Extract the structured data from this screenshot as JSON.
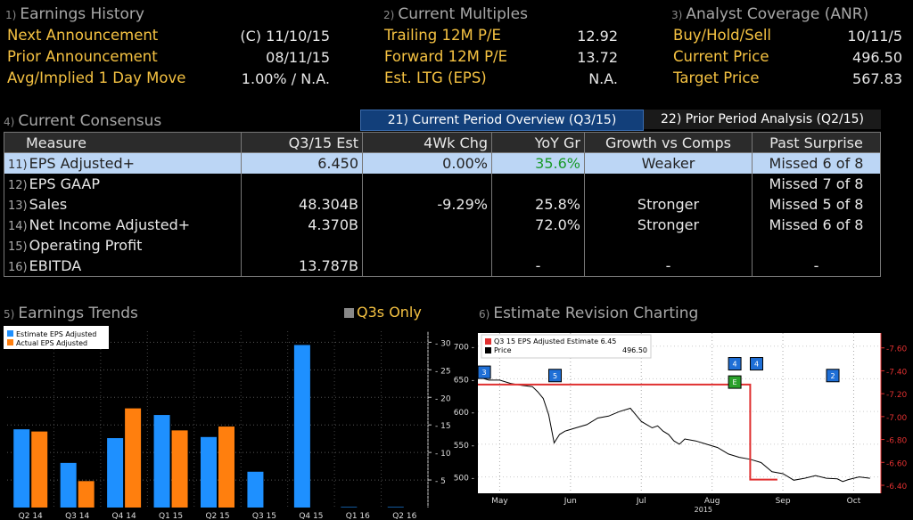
{
  "earnings_history": {
    "num": "1)",
    "title": "Earnings History",
    "rows": [
      {
        "label": "Next Announcement",
        "value": "(C)  11/10/15"
      },
      {
        "label": "Prior Announcement",
        "value": "08/11/15"
      },
      {
        "label": "Avg/Implied 1 Day Move",
        "value": "1.00% / N.A."
      }
    ]
  },
  "current_multiples": {
    "num": "2)",
    "title": "Current Multiples",
    "rows": [
      {
        "label": "Trailing 12M P/E",
        "value": "12.92"
      },
      {
        "label": "Forward 12M P/E",
        "value": "13.72"
      },
      {
        "label": "Est. LTG (EPS)",
        "value": "N.A."
      }
    ]
  },
  "analyst_coverage": {
    "num": "3)",
    "title": "Analyst Coverage (ANR)",
    "rows": [
      {
        "label": "Buy/Hold/Sell",
        "value": "10/11/5"
      },
      {
        "label": "Current Price",
        "value": "496.50"
      },
      {
        "label": "Target Price",
        "value": "567.83"
      }
    ]
  },
  "consensus": {
    "num": "4)",
    "title": "Current Consensus",
    "tab_current": "21) Current Period Overview (Q3/15)",
    "tab_prior": "22) Prior Period Analysis (Q2/15)",
    "headers": [
      "Measure",
      "Q3/15 Est",
      "4Wk Chg",
      "YoY Gr",
      "Growth vs Comps",
      "Past Surprise"
    ],
    "rows": [
      {
        "num": "11)",
        "measure": "EPS Adjusted+",
        "est": "6.450",
        "chg": "0.00%",
        "yoy": "35.6%",
        "comps": "Weaker",
        "surprise": "Missed 6 of 8"
      },
      {
        "num": "12)",
        "measure": "EPS GAAP",
        "est": "",
        "chg": "",
        "yoy": "",
        "comps": "",
        "surprise": "Missed 7 of 8"
      },
      {
        "num": "13)",
        "measure": "Sales",
        "est": "48.304B",
        "chg": "-9.29%",
        "yoy": "25.8%",
        "comps": "Stronger",
        "surprise": "Missed 5 of 8"
      },
      {
        "num": "14)",
        "measure": "Net Income Adjusted+",
        "est": "4.370B",
        "chg": "",
        "yoy": "72.0%",
        "comps": "Stronger",
        "surprise": "Missed 6 of 8"
      },
      {
        "num": "15)",
        "measure": "Operating Profit",
        "est": "",
        "chg": "",
        "yoy": "",
        "comps": "",
        "surprise": ""
      },
      {
        "num": "16)",
        "measure": "EBITDA",
        "est": "13.787B",
        "chg": "",
        "yoy": "-",
        "comps": "-",
        "surprise": "-"
      }
    ]
  },
  "earnings_trends": {
    "num": "5)",
    "title": "Earnings Trends",
    "q3s_label": "Q3s Only"
  },
  "revision_chart": {
    "num": "6)",
    "title": "Estimate Revision Charting"
  },
  "colors": {
    "amber": "#f5c242",
    "estimate_bar": "#1e90ff",
    "actual_bar": "#ff7f0e",
    "estimate_line": "#e03030",
    "price_line": "#000000",
    "selected_row": "#bcd6f5"
  },
  "chart_data": [
    {
      "type": "bar",
      "categories": [
        "Q2 14",
        "Q3 14",
        "Q4 14",
        "Q1 15",
        "Q2 15",
        "Q3 15",
        "Q4 15",
        "Q1 16",
        "Q2 16"
      ],
      "series": [
        {
          "name": "Estimate EPS Adjusted",
          "values": [
            14.2,
            8.1,
            12.6,
            16.8,
            12.8,
            6.5,
            29.5,
            0.1,
            0.1
          ]
        },
        {
          "name": "Actual EPS Adjusted",
          "values": [
            13.8,
            4.8,
            18.0,
            14.0,
            14.7,
            null,
            null,
            null,
            null
          ]
        }
      ],
      "ylim": [
        0,
        32
      ],
      "yticks": [
        5,
        10,
        15,
        20,
        25,
        30
      ],
      "grid": true,
      "legend": "top-left"
    },
    {
      "type": "line",
      "x_ticks": [
        "May",
        "Jun",
        "Jul",
        "Aug",
        "Sep",
        "Oct"
      ],
      "x_year": "2015",
      "legend": "top-left",
      "series": [
        {
          "name": "Q3 15 EPS Adjusted Estimate",
          "last": "6.45",
          "axis": "right",
          "points": [
            [
              0,
              7.28
            ],
            [
              50,
              7.28
            ],
            [
              50,
              6.45
            ],
            [
              55,
              6.45
            ]
          ]
        },
        {
          "name": "Price",
          "last": "496.50",
          "axis": "left",
          "points": [
            [
              0,
              653
            ],
            [
              2,
              648
            ],
            [
              4,
              648
            ],
            [
              6,
              643
            ],
            [
              8,
              640
            ],
            [
              10,
              638
            ],
            [
              11,
              630
            ],
            [
              12,
              620
            ],
            [
              13,
              595
            ],
            [
              14,
              552
            ],
            [
              15,
              565
            ],
            [
              16,
              570
            ],
            [
              18,
              575
            ],
            [
              20,
              580
            ],
            [
              22,
              590
            ],
            [
              24,
              593
            ],
            [
              26,
              600
            ],
            [
              28,
              605
            ],
            [
              29,
              595
            ],
            [
              30,
              585
            ],
            [
              31,
              580
            ],
            [
              32,
              575
            ],
            [
              33,
              578
            ],
            [
              34,
              570
            ],
            [
              35,
              565
            ],
            [
              36,
              555
            ],
            [
              37,
              550
            ],
            [
              38,
              558
            ],
            [
              40,
              555
            ],
            [
              42,
              550
            ],
            [
              44,
              545
            ],
            [
              46,
              535
            ],
            [
              48,
              530
            ],
            [
              50,
              527
            ],
            [
              52,
              522
            ],
            [
              54,
              508
            ],
            [
              56,
              505
            ],
            [
              57,
              500
            ],
            [
              58,
              495
            ],
            [
              60,
              498
            ],
            [
              62,
              502
            ],
            [
              64,
              498
            ],
            [
              66,
              497
            ],
            [
              67,
              493
            ],
            [
              68,
              496
            ],
            [
              70,
              500
            ],
            [
              72,
              498
            ]
          ]
        }
      ],
      "left_ticks": [
        500,
        550,
        600,
        650,
        700
      ],
      "right_ticks": [
        "6.40",
        "6.60",
        "6.80",
        "7.00",
        "7.20",
        "7.40",
        "7.60"
      ],
      "event_markers": [
        {
          "label": "3",
          "x": 1
        },
        {
          "label": "5",
          "x": 14
        },
        {
          "label": "4",
          "x": 47
        },
        {
          "label": "4",
          "x": 51
        },
        {
          "label": "E",
          "x": 47
        },
        {
          "label": "2",
          "x": 65
        }
      ]
    }
  ]
}
